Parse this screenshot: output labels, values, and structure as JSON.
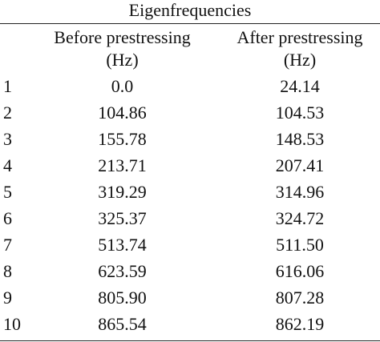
{
  "table": {
    "caption": "Eigenfrequencies",
    "headers": {
      "before_line1": "Before prestressing",
      "before_line2": "(Hz)",
      "after_line1": "After prestressing",
      "after_line2": "(Hz)"
    },
    "rows": [
      {
        "index": "1",
        "before": "0.0",
        "after": "24.14"
      },
      {
        "index": "2",
        "before": "104.86",
        "after": "104.53"
      },
      {
        "index": "3",
        "before": "155.78",
        "after": "148.53"
      },
      {
        "index": "4",
        "before": "213.71",
        "after": "207.41"
      },
      {
        "index": "5",
        "before": "319.29",
        "after": "314.96"
      },
      {
        "index": "6",
        "before": "325.37",
        "after": "324.72"
      },
      {
        "index": "7",
        "before": "513.74",
        "after": "511.50"
      },
      {
        "index": "8",
        "before": "623.59",
        "after": "616.06"
      },
      {
        "index": "9",
        "before": "805.90",
        "after": "807.28"
      },
      {
        "index": "10",
        "before": "865.54",
        "after": "862.19"
      }
    ]
  }
}
